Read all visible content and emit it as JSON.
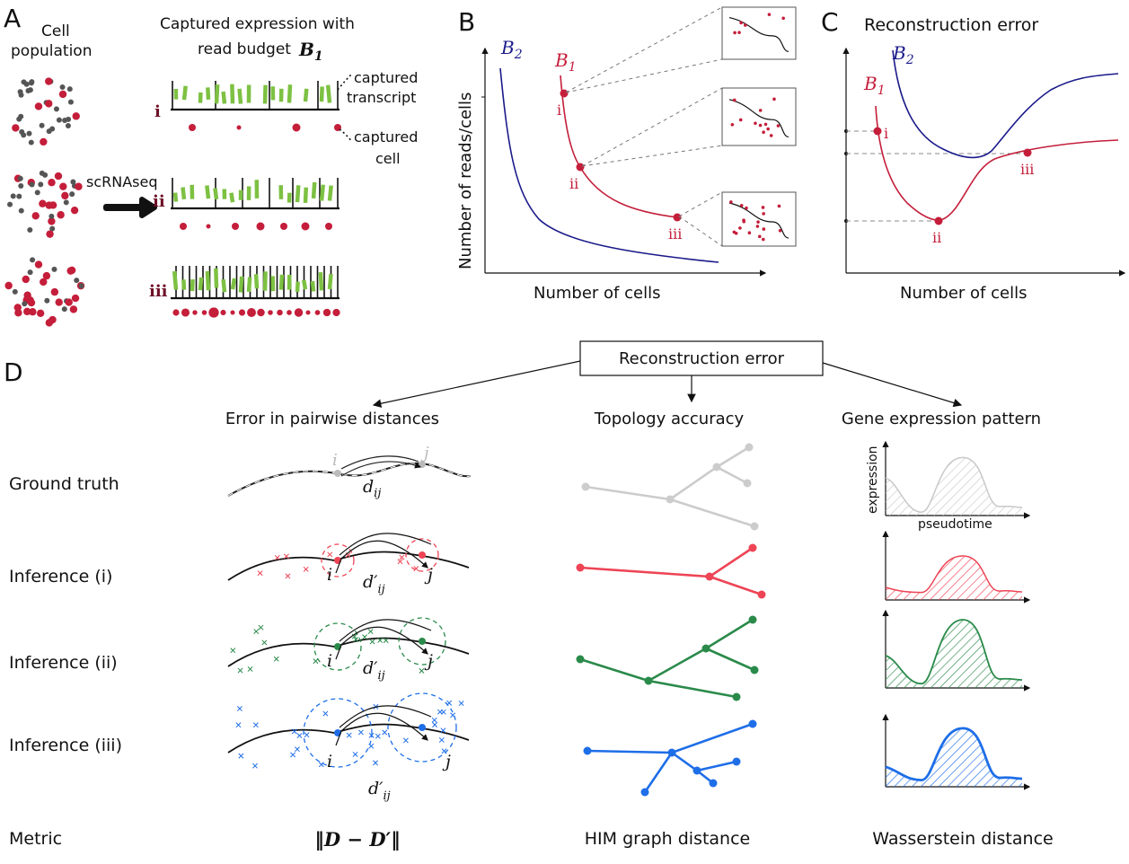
{
  "panelA": {
    "letter": "A",
    "pop_label1": "Cell",
    "pop_label2": "population",
    "captured1": "Captured expression with",
    "captured2": "read budget",
    "budget": "B",
    "budget_sub": "1",
    "method": "scRNAseq",
    "ann_transcript1": "captured",
    "ann_transcript2": "transcript",
    "ann_cell1": "captured",
    "ann_cell2": "cell",
    "rows": [
      "i",
      "ii",
      "iii"
    ]
  },
  "panelB": {
    "letter": "B",
    "ylabel": "Number of reads/cells",
    "xlabel": "Number of cells",
    "curve_B1": "B",
    "curve_B1_sub": "1",
    "curve_B2": "B",
    "curve_B2_sub": "2",
    "points": [
      "i",
      "ii",
      "iii"
    ]
  },
  "panelC": {
    "letter": "C",
    "title": "Reconstruction error",
    "xlabel": "Number of cells",
    "curve_B1": "B",
    "curve_B1_sub": "1",
    "curve_B2": "B",
    "curve_B2_sub": "2",
    "points": [
      "i",
      "ii",
      "iii"
    ]
  },
  "panelD": {
    "letter": "D",
    "root": "Reconstruction error",
    "col1": "Error in pairwise distances",
    "col2": "Topology accuracy",
    "col3": "Gene expression pattern",
    "rows": [
      "Ground truth",
      "Inference (i)",
      "Inference (ii)",
      "Inference (iii)"
    ],
    "metric_label": "Metric",
    "metric1": "‖D − D′‖",
    "metric2": "HIM graph distance",
    "metric3": "Wasserstein distance",
    "gt_i": "i",
    "gt_j": "j",
    "d": "d",
    "d_sub": "ij",
    "dp": "d′",
    "expr_ylabel": "expression",
    "expr_xlabel": "pseudotime"
  },
  "colors": {
    "red": "#c41e3a",
    "navy": "#1a1a8a",
    "green": "#7dc142",
    "gray": "#cccccc",
    "inf_red": "#ee4455",
    "inf_green": "#2a8a4a",
    "inf_blue": "#1e6ee8"
  }
}
